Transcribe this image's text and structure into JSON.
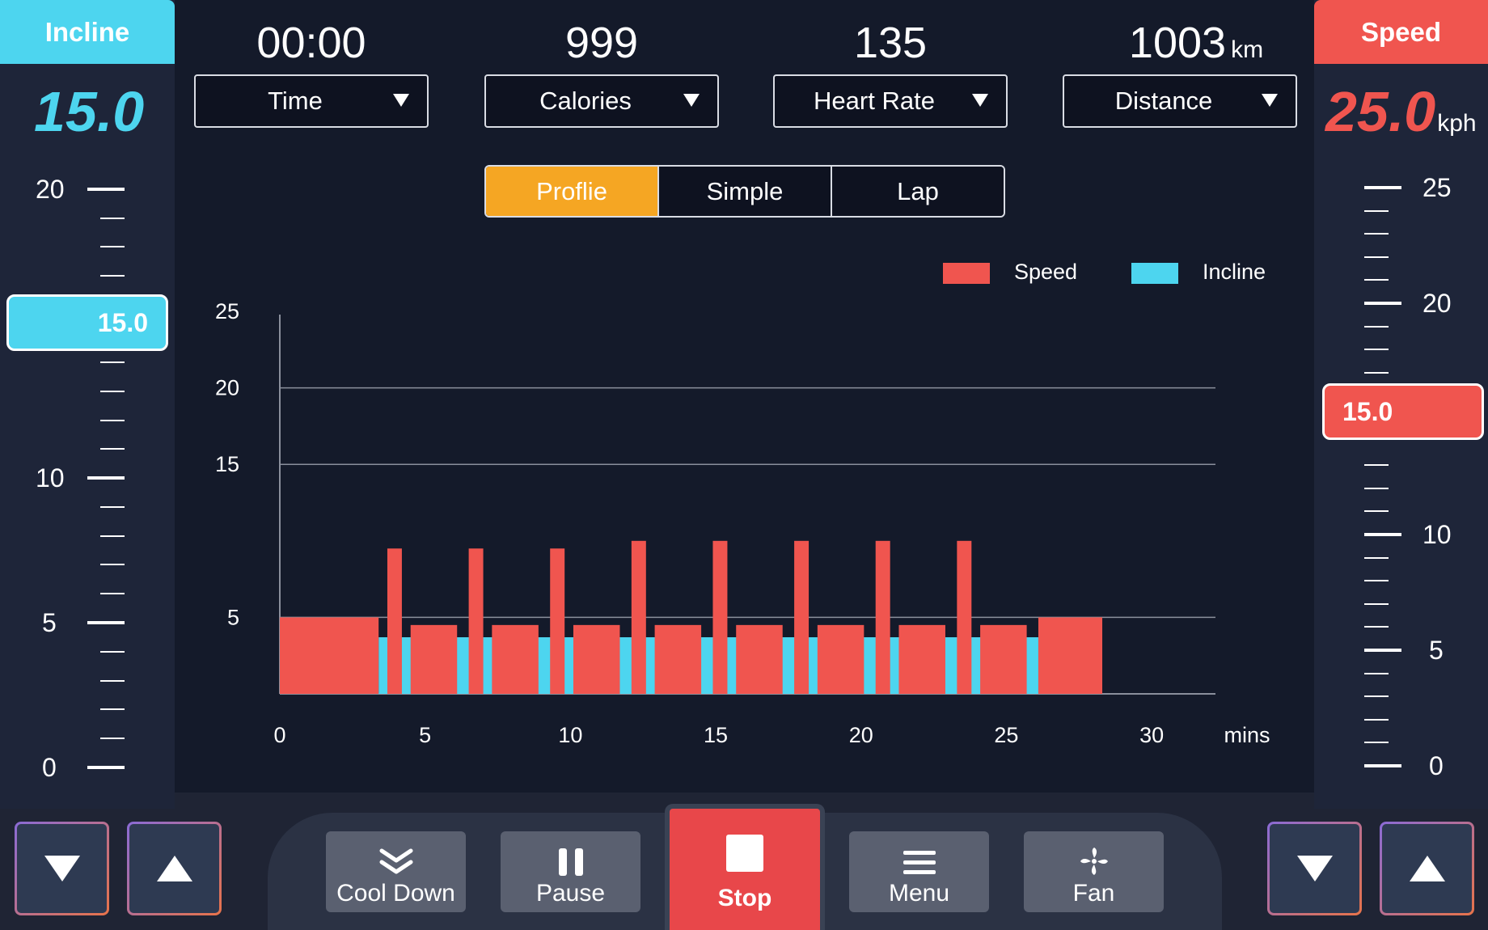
{
  "incline": {
    "header": "Incline",
    "value": "15.0",
    "marker": "15.0",
    "scale_labels": [
      "20",
      "10",
      "5",
      "0"
    ],
    "color": "#4dd5ef"
  },
  "speed": {
    "header": "Speed",
    "value": "25.0",
    "unit": "kph",
    "marker": "15.0",
    "scale_labels": [
      "25",
      "20",
      "10",
      "5",
      "0"
    ],
    "color": "#f0554f"
  },
  "stats": [
    {
      "value": "00:00",
      "unit": "",
      "label": "Time"
    },
    {
      "value": "999",
      "unit": "",
      "label": "Calories"
    },
    {
      "value": "135",
      "unit": "",
      "label": "Heart Rate"
    },
    {
      "value": "1003",
      "unit": "km",
      "label": "Distance"
    }
  ],
  "tabs": [
    {
      "label": "Proflie",
      "active": true
    },
    {
      "label": "Simple",
      "active": false
    },
    {
      "label": "Lap",
      "active": false
    }
  ],
  "chart_data": {
    "type": "bar",
    "x_unit": "mins",
    "x_ticks": [
      0,
      5,
      10,
      15,
      20,
      25,
      30
    ],
    "y_ticks": [
      5,
      15,
      20,
      25
    ],
    "ylim": [
      0,
      25
    ],
    "xlim": [
      0,
      32
    ],
    "grid": true,
    "legend_position": "top-right",
    "series": [
      {
        "name": "Speed",
        "color": "#f0554f",
        "segments": [
          {
            "x0": 0,
            "x1": 3.4,
            "value": 5
          },
          {
            "x0": 3.7,
            "x1": 4.2,
            "value": 9.5
          },
          {
            "x0": 4.5,
            "x1": 6.1,
            "value": 4.5
          },
          {
            "x0": 6.5,
            "x1": 7.0,
            "value": 9.5
          },
          {
            "x0": 7.3,
            "x1": 8.9,
            "value": 4.5
          },
          {
            "x0": 9.3,
            "x1": 9.8,
            "value": 9.5
          },
          {
            "x0": 10.1,
            "x1": 11.7,
            "value": 4.5
          },
          {
            "x0": 12.1,
            "x1": 12.6,
            "value": 10
          },
          {
            "x0": 12.9,
            "x1": 14.5,
            "value": 4.5
          },
          {
            "x0": 14.9,
            "x1": 15.4,
            "value": 10
          },
          {
            "x0": 15.7,
            "x1": 17.3,
            "value": 4.5
          },
          {
            "x0": 17.7,
            "x1": 18.2,
            "value": 10
          },
          {
            "x0": 18.5,
            "x1": 20.1,
            "value": 4.5
          },
          {
            "x0": 20.5,
            "x1": 21.0,
            "value": 10
          },
          {
            "x0": 21.3,
            "x1": 22.9,
            "value": 4.5
          },
          {
            "x0": 23.3,
            "x1": 23.8,
            "value": 10
          },
          {
            "x0": 24.1,
            "x1": 25.7,
            "value": 4.5
          },
          {
            "x0": 26.1,
            "x1": 28.3,
            "value": 5
          }
        ]
      },
      {
        "name": "Incline",
        "color": "#4dd5ef",
        "segments": [
          {
            "x0": 3.4,
            "x1": 26.1,
            "value": 3.7
          }
        ]
      }
    ]
  },
  "controls": {
    "cool_down": "Cool Down",
    "pause": "Pause",
    "stop": "Stop",
    "menu": "Menu",
    "fan": "Fan"
  }
}
